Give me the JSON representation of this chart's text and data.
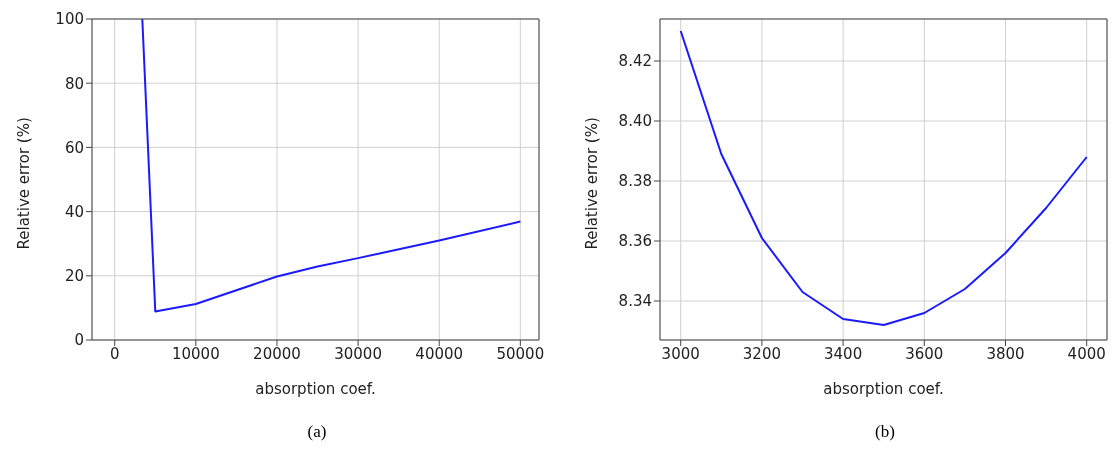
{
  "chart_data": [
    {
      "type": "line",
      "xlabel": "absorption coef.",
      "ylabel": "Relative error (%)",
      "annotations": [
        "(a)"
      ],
      "series": [
        {
          "color": "#1a1aff",
          "x": [
            3400,
            5000,
            10000,
            20000,
            25000,
            30000,
            40000,
            50000
          ],
          "values": [
            100,
            8.9,
            11.2,
            19.8,
            22.9,
            25.5,
            31.0,
            36.9
          ]
        }
      ],
      "xlim": [
        -2800,
        52300
      ],
      "xticks": [
        0,
        10000,
        20000,
        30000,
        40000,
        50000
      ],
      "ylim": [
        0,
        100
      ],
      "yticks": [
        0,
        20,
        40,
        60,
        80,
        100
      ],
      "grid": true,
      "marker": "none",
      "line_style": "solid"
    },
    {
      "type": "line",
      "xlabel": "absorption coef.",
      "ylabel": "Relative error (%)",
      "annotations": [
        "(b)"
      ],
      "series": [
        {
          "color": "#1a1aff",
          "x": [
            3000,
            3100,
            3200,
            3300,
            3400,
            3500,
            3600,
            3700,
            3800,
            3900,
            4000
          ],
          "values": [
            8.43,
            8.389,
            8.361,
            8.343,
            8.334,
            8.332,
            8.336,
            8.344,
            8.356,
            8.371,
            8.388
          ]
        }
      ],
      "xlim": [
        2949,
        4050
      ],
      "xticks": [
        3000,
        3200,
        3400,
        3600,
        3800,
        4000
      ],
      "ylim": [
        8.327,
        8.434
      ],
      "yticks": [
        {
          "value": 8.34,
          "label": "8.34"
        },
        {
          "value": 8.36,
          "label": "8.36"
        },
        {
          "value": 8.38,
          "label": "8.38"
        },
        {
          "value": 8.4,
          "label": "8.40"
        },
        {
          "value": 8.42,
          "label": "8.42"
        }
      ],
      "grid": true,
      "marker": "none",
      "line_style": "solid"
    }
  ]
}
